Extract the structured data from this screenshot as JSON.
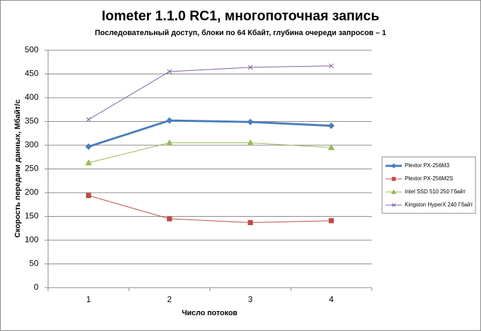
{
  "chart_data": {
    "type": "line",
    "title": "Iometer 1.1.0 RC1, многопоточная запись",
    "subtitle": "Последовательный  доступ, блоки  по 64 Кбайт,  глубина очереди запросов – 1",
    "x_label": "Число  потоков",
    "y_label": "Скорость  передачи данных, Мбайт/с",
    "categories": [
      "1",
      "2",
      "3",
      "4"
    ],
    "series": [
      {
        "name": "Plextor PX-256M3",
        "color": "#4a7ebb",
        "marker": "diamond",
        "values": [
          297,
          352,
          349,
          341
        ]
      },
      {
        "name": "Plextor PX-256M2S",
        "color": "#be4b48",
        "marker": "square",
        "values": [
          194,
          145,
          137,
          141
        ]
      },
      {
        "name": "Intel SSD 510 250 Гбайт",
        "color": "#98b954",
        "marker": "triangle",
        "values": [
          263,
          305,
          305,
          295
        ]
      },
      {
        "name": "Kingston HyperX 240 Гбайт",
        "color": "#7d60a0",
        "marker": "x",
        "values": [
          354,
          455,
          464,
          467
        ]
      }
    ],
    "ylim": [
      0,
      500
    ],
    "yticks": [
      0,
      50,
      100,
      150,
      200,
      250,
      300,
      350,
      400,
      450,
      500
    ],
    "grid": true,
    "legend": "right"
  }
}
